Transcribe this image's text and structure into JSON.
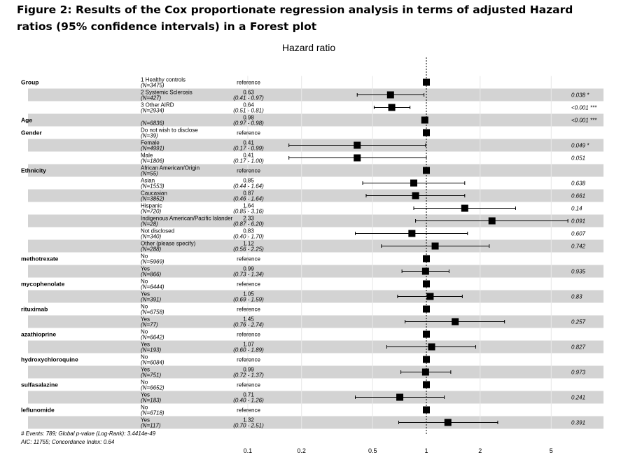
{
  "title": "Figure 2: Results of the Cox proportionate regression analysis in terms of adjusted Hazard ratios (95% confidence intervals) in a Forest plot",
  "chart_data": {
    "type": "forest",
    "plot_title": "Hazard ratio",
    "x_scale": "log",
    "xlim": [
      0.07,
      10
    ],
    "x_ticks": [
      0.1,
      0.2,
      0.5,
      1,
      2,
      5
    ],
    "x_tick_labels": [
      "0.1",
      "0.2",
      "0.5",
      "1",
      "2",
      "5"
    ],
    "reference_line": 1,
    "rows": [
      {
        "variable": "Group",
        "level": "1 Healthy controls",
        "n": "(N=3475)",
        "est": "reference",
        "ci": "",
        "p": "",
        "hr": 1,
        "lo": null,
        "hi": null
      },
      {
        "variable": "",
        "level": "2 Systemic Sclerosis",
        "n": "(N=427)",
        "est": "0.63",
        "ci": "(0.41 - 0.97)",
        "p": "0.038 *",
        "hr": 0.63,
        "lo": 0.41,
        "hi": 0.97
      },
      {
        "variable": "",
        "level": "3 Other AIRD",
        "n": "(N=2934)",
        "est": "0.64",
        "ci": "(0.51 - 0.81)",
        "p": "<0.001 ***",
        "hr": 0.64,
        "lo": 0.51,
        "hi": 0.81
      },
      {
        "variable": "Age",
        "level": "",
        "n": "(N=6836)",
        "est": "0.98",
        "ci": "(0.97 - 0.98)",
        "p": "<0.001 ***",
        "hr": 0.98,
        "lo": 0.97,
        "hi": 0.98
      },
      {
        "variable": "Gender",
        "level": "Do not wish to disclose",
        "n": "(N=39)",
        "est": "reference",
        "ci": "",
        "p": "",
        "hr": 1,
        "lo": null,
        "hi": null
      },
      {
        "variable": "",
        "level": "Female",
        "n": "(N=4991)",
        "est": "0.41",
        "ci": "(0.17 - 0.99)",
        "p": "0.049 *",
        "hr": 0.41,
        "lo": 0.17,
        "hi": 0.99
      },
      {
        "variable": "",
        "level": "Male",
        "n": "(N=1806)",
        "est": "0.41",
        "ci": "(0.17 - 1.00)",
        "p": "0.051",
        "hr": 0.41,
        "lo": 0.17,
        "hi": 1.0
      },
      {
        "variable": "Ethnicity",
        "level": "African American/Origin",
        "n": "(N=55)",
        "est": "reference",
        "ci": "",
        "p": "",
        "hr": 1,
        "lo": null,
        "hi": null
      },
      {
        "variable": "",
        "level": "Asian",
        "n": "(N=1553)",
        "est": "0.85",
        "ci": "(0.44 - 1.64)",
        "p": "0.638",
        "hr": 0.85,
        "lo": 0.44,
        "hi": 1.64
      },
      {
        "variable": "",
        "level": "Caucasian",
        "n": "(N=3852)",
        "est": "0.87",
        "ci": "(0.46 - 1.64)",
        "p": "0.661",
        "hr": 0.87,
        "lo": 0.46,
        "hi": 1.64
      },
      {
        "variable": "",
        "level": "Hispanic",
        "n": "(N=720)",
        "est": "1.64",
        "ci": "(0.85 - 3.16)",
        "p": "0.14",
        "hr": 1.64,
        "lo": 0.85,
        "hi": 3.16
      },
      {
        "variable": "",
        "level": "Indigenous American/Pacific Islander",
        "n": "(N=28)",
        "est": "2.33",
        "ci": "(0.87 - 6.20)",
        "p": "0.091",
        "hr": 2.33,
        "lo": 0.87,
        "hi": 6.2
      },
      {
        "variable": "",
        "level": "Not disclosed",
        "n": "(N=340)",
        "est": "0.83",
        "ci": "(0.40 - 1.70)",
        "p": "0.607",
        "hr": 0.83,
        "lo": 0.4,
        "hi": 1.7
      },
      {
        "variable": "",
        "level": "Other (please specify)",
        "n": "(N=288)",
        "est": "1.12",
        "ci": "(0.56 - 2.25)",
        "p": "0.742",
        "hr": 1.12,
        "lo": 0.56,
        "hi": 2.25
      },
      {
        "variable": "methotrexate",
        "level": "No",
        "n": "(N=5969)",
        "est": "reference",
        "ci": "",
        "p": "",
        "hr": 1,
        "lo": null,
        "hi": null
      },
      {
        "variable": "",
        "level": "Yes",
        "n": "(N=866)",
        "est": "0.99",
        "ci": "(0.73 - 1.34)",
        "p": "0.935",
        "hr": 0.99,
        "lo": 0.73,
        "hi": 1.34
      },
      {
        "variable": "mycophenolate",
        "level": "No",
        "n": "(N=6444)",
        "est": "reference",
        "ci": "",
        "p": "",
        "hr": 1,
        "lo": null,
        "hi": null
      },
      {
        "variable": "",
        "level": "Yes",
        "n": "(N=391)",
        "est": "1.05",
        "ci": "(0.69 - 1.59)",
        "p": "0.83",
        "hr": 1.05,
        "lo": 0.69,
        "hi": 1.59
      },
      {
        "variable": "rituximab",
        "level": "No",
        "n": "(N=6758)",
        "est": "reference",
        "ci": "",
        "p": "",
        "hr": 1,
        "lo": null,
        "hi": null
      },
      {
        "variable": "",
        "level": "Yes",
        "n": "(N=77)",
        "est": "1.45",
        "ci": "(0.76 - 2.74)",
        "p": "0.257",
        "hr": 1.45,
        "lo": 0.76,
        "hi": 2.74
      },
      {
        "variable": "azathioprine",
        "level": "No",
        "n": "(N=6642)",
        "est": "reference",
        "ci": "",
        "p": "",
        "hr": 1,
        "lo": null,
        "hi": null
      },
      {
        "variable": "",
        "level": "Yes",
        "n": "(N=193)",
        "est": "1.07",
        "ci": "(0.60 - 1.89)",
        "p": "0.827",
        "hr": 1.07,
        "lo": 0.6,
        "hi": 1.89
      },
      {
        "variable": "hydroxychloroquine",
        "level": "No",
        "n": "(N=6084)",
        "est": "reference",
        "ci": "",
        "p": "",
        "hr": 1,
        "lo": null,
        "hi": null
      },
      {
        "variable": "",
        "level": "Yes",
        "n": "(N=751)",
        "est": "0.99",
        "ci": "(0.72 - 1.37)",
        "p": "0.973",
        "hr": 0.99,
        "lo": 0.72,
        "hi": 1.37
      },
      {
        "variable": "sulfasalazine",
        "level": "No",
        "n": "(N=6652)",
        "est": "reference",
        "ci": "",
        "p": "",
        "hr": 1,
        "lo": null,
        "hi": null
      },
      {
        "variable": "",
        "level": "Yes",
        "n": "(N=183)",
        "est": "0.71",
        "ci": "(0.40 - 1.26)",
        "p": "0.241",
        "hr": 0.71,
        "lo": 0.4,
        "hi": 1.26
      },
      {
        "variable": "leflunomide",
        "level": "No",
        "n": "(N=6718)",
        "est": "reference",
        "ci": "",
        "p": "",
        "hr": 1,
        "lo": null,
        "hi": null
      },
      {
        "variable": "",
        "level": "Yes",
        "n": "(N=117)",
        "est": "1.32",
        "ci": "(0.70 - 2.51)",
        "p": "0.391",
        "hr": 1.32,
        "lo": 0.7,
        "hi": 2.51
      }
    ],
    "shaded_rows": [
      1,
      3,
      5,
      7,
      9,
      11,
      13,
      15,
      17,
      19,
      21,
      23,
      25,
      27
    ],
    "footnote_line1": "# Events: 789; Global p-value (Log-Rank): 3.4414e-49",
    "footnote_line2": "AIC: 11755; Concordance Index: 0.64",
    "colors": {
      "shade": "#d3d3d3",
      "grid": "#e8e8e8",
      "marker": "#000000",
      "text": "#000000"
    }
  }
}
